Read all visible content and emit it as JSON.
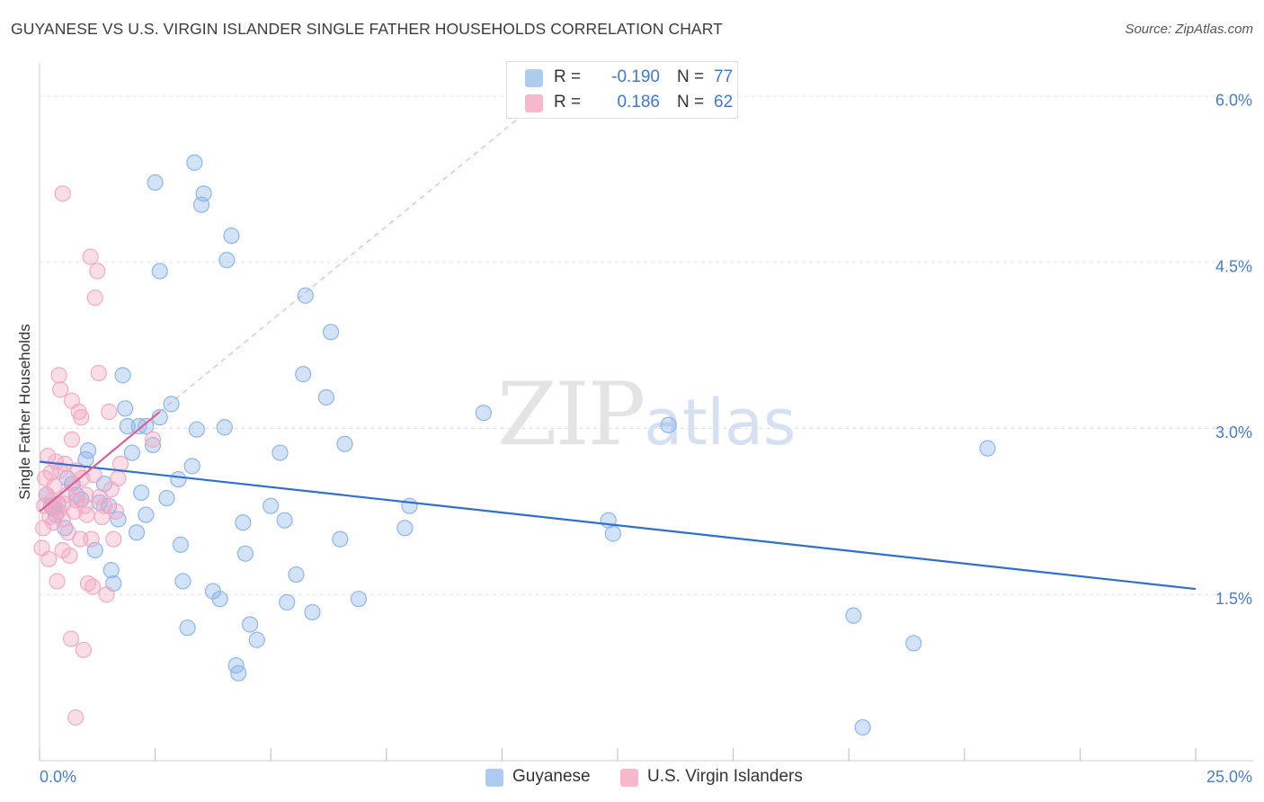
{
  "title": "GUYANESE VS U.S. VIRGIN ISLANDER SINGLE FATHER HOUSEHOLDS CORRELATION CHART",
  "source": "Source: ZipAtlas.com",
  "watermark": {
    "zip": "ZIP",
    "atlas": "atlas"
  },
  "legend": {
    "rows": [
      {
        "r_label": "R =",
        "r_value": "-0.190",
        "n_label": "N =",
        "n_value": "77",
        "color": "#aecbf0"
      },
      {
        "r_label": "R =",
        "r_value": "0.186",
        "n_label": "N =",
        "n_value": "62",
        "color": "#f7b8cc"
      }
    ]
  },
  "bottom_legend": [
    {
      "label": "Guyanese",
      "color": "#aecbf0"
    },
    {
      "label": "U.S. Virgin Islanders",
      "color": "#f7b8cc"
    }
  ],
  "chart_data": {
    "type": "scatter",
    "title": "GUYANESE VS U.S. VIRGIN ISLANDER SINGLE FATHER HOUSEHOLDS CORRELATION CHART",
    "xlabel": "",
    "ylabel": "Single Father Households",
    "xlim": [
      0,
      25
    ],
    "ylim": [
      0,
      6.3
    ],
    "x_tick_labels": [
      "0.0%",
      "25.0%"
    ],
    "y_ticks": [
      1.5,
      3.0,
      4.5,
      6.0
    ],
    "y_tick_labels": [
      "1.5%",
      "3.0%",
      "4.5%",
      "6.0%"
    ],
    "grid": "horizontal dashed",
    "legend_position": "top-center",
    "series": [
      {
        "name": "Guyanese",
        "color": "#8ab2ea",
        "line_color": "#2f6fcf",
        "trend": {
          "x": [
            0,
            25
          ],
          "y": [
            2.7,
            1.55
          ]
        },
        "points": [
          [
            0.15,
            2.4
          ],
          [
            0.25,
            2.3
          ],
          [
            0.3,
            2.28
          ],
          [
            0.35,
            2.22
          ],
          [
            0.4,
            2.32
          ],
          [
            0.55,
            2.1
          ],
          [
            0.6,
            2.55
          ],
          [
            0.7,
            2.5
          ],
          [
            0.8,
            2.4
          ],
          [
            0.9,
            2.36
          ],
          [
            1.0,
            2.72
          ],
          [
            1.05,
            2.8
          ],
          [
            1.2,
            1.9
          ],
          [
            1.3,
            2.33
          ],
          [
            1.4,
            2.5
          ],
          [
            1.5,
            2.3
          ],
          [
            1.55,
            1.72
          ],
          [
            1.6,
            1.6
          ],
          [
            1.7,
            2.18
          ],
          [
            1.8,
            3.48
          ],
          [
            1.85,
            3.18
          ],
          [
            1.9,
            3.02
          ],
          [
            2.0,
            2.78
          ],
          [
            2.1,
            2.06
          ],
          [
            2.15,
            3.02
          ],
          [
            2.2,
            2.42
          ],
          [
            2.3,
            3.02
          ],
          [
            2.3,
            2.22
          ],
          [
            2.45,
            2.85
          ],
          [
            2.5,
            5.22
          ],
          [
            2.6,
            4.42
          ],
          [
            2.6,
            3.1
          ],
          [
            2.75,
            2.37
          ],
          [
            2.85,
            3.22
          ],
          [
            3.0,
            2.54
          ],
          [
            3.05,
            1.95
          ],
          [
            3.1,
            1.62
          ],
          [
            3.2,
            1.2
          ],
          [
            3.3,
            2.66
          ],
          [
            3.35,
            5.4
          ],
          [
            3.4,
            2.99
          ],
          [
            3.5,
            5.02
          ],
          [
            3.55,
            5.12
          ],
          [
            3.75,
            1.53
          ],
          [
            3.9,
            1.46
          ],
          [
            4.0,
            3.01
          ],
          [
            4.05,
            4.52
          ],
          [
            4.15,
            4.74
          ],
          [
            4.25,
            0.86
          ],
          [
            4.3,
            0.79
          ],
          [
            4.4,
            2.15
          ],
          [
            4.45,
            1.87
          ],
          [
            4.55,
            1.23
          ],
          [
            4.7,
            1.09
          ],
          [
            5.0,
            2.3
          ],
          [
            5.2,
            2.78
          ],
          [
            5.3,
            2.17
          ],
          [
            5.35,
            1.43
          ],
          [
            5.55,
            1.68
          ],
          [
            5.7,
            3.49
          ],
          [
            5.75,
            4.2
          ],
          [
            5.9,
            1.34
          ],
          [
            6.2,
            3.28
          ],
          [
            6.3,
            3.87
          ],
          [
            6.5,
            2.0
          ],
          [
            6.6,
            2.86
          ],
          [
            6.9,
            1.46
          ],
          [
            7.9,
            2.1
          ],
          [
            8.0,
            2.3
          ],
          [
            9.6,
            3.14
          ],
          [
            12.3,
            2.17
          ],
          [
            12.4,
            2.05
          ],
          [
            13.6,
            3.03
          ],
          [
            17.6,
            1.31
          ],
          [
            17.8,
            0.3
          ],
          [
            18.9,
            1.06
          ],
          [
            20.5,
            2.82
          ]
        ]
      },
      {
        "name": "U.S. Virgin Islanders",
        "color": "#f2a7c0",
        "line_color": "#e0608f",
        "trend": {
          "x": [
            0,
            2.6
          ],
          "y": [
            2.25,
            3.15
          ]
        },
        "trend_extension": {
          "x": [
            2.6,
            10.5
          ],
          "y": [
            3.15,
            5.85
          ]
        },
        "points": [
          [
            0.05,
            1.92
          ],
          [
            0.08,
            2.1
          ],
          [
            0.1,
            2.3
          ],
          [
            0.12,
            2.55
          ],
          [
            0.15,
            2.4
          ],
          [
            0.18,
            2.75
          ],
          [
            0.2,
            1.82
          ],
          [
            0.22,
            2.2
          ],
          [
            0.25,
            2.6
          ],
          [
            0.28,
            2.35
          ],
          [
            0.3,
            2.15
          ],
          [
            0.32,
            2.48
          ],
          [
            0.35,
            2.7
          ],
          [
            0.38,
            1.62
          ],
          [
            0.4,
            2.25
          ],
          [
            0.42,
            3.48
          ],
          [
            0.45,
            2.62
          ],
          [
            0.5,
            1.9
          ],
          [
            0.5,
            2.18
          ],
          [
            0.52,
            2.32
          ],
          [
            0.55,
            2.68
          ],
          [
            0.6,
            2.4
          ],
          [
            0.62,
            2.06
          ],
          [
            0.65,
            1.85
          ],
          [
            0.68,
            1.1
          ],
          [
            0.7,
            2.9
          ],
          [
            0.72,
            2.5
          ],
          [
            0.75,
            2.25
          ],
          [
            0.78,
            0.39
          ],
          [
            0.8,
            2.35
          ],
          [
            0.82,
            2.62
          ],
          [
            0.85,
            3.15
          ],
          [
            0.88,
            2.0
          ],
          [
            0.9,
            3.1
          ],
          [
            0.92,
            2.55
          ],
          [
            0.95,
            1.0
          ],
          [
            0.98,
            2.3
          ],
          [
            1.0,
            2.4
          ],
          [
            1.02,
            2.22
          ],
          [
            1.05,
            1.6
          ],
          [
            1.1,
            4.55
          ],
          [
            1.12,
            2.0
          ],
          [
            1.15,
            1.57
          ],
          [
            1.18,
            2.58
          ],
          [
            1.2,
            4.18
          ],
          [
            1.25,
            4.42
          ],
          [
            1.28,
            3.5
          ],
          [
            1.3,
            2.38
          ],
          [
            1.35,
            2.2
          ],
          [
            1.4,
            2.3
          ],
          [
            1.45,
            1.5
          ],
          [
            1.5,
            3.15
          ],
          [
            1.55,
            2.45
          ],
          [
            1.6,
            2.0
          ],
          [
            1.65,
            2.25
          ],
          [
            1.7,
            2.55
          ],
          [
            1.75,
            2.68
          ],
          [
            0.35,
            2.28
          ],
          [
            0.45,
            3.35
          ],
          [
            0.5,
            5.12
          ],
          [
            0.7,
            3.25
          ],
          [
            2.45,
            2.9
          ]
        ]
      }
    ]
  }
}
